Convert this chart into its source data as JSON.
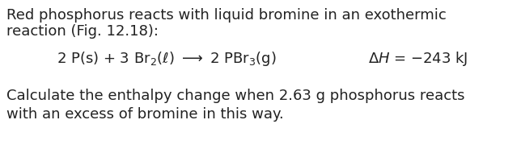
{
  "background_color": "#ffffff",
  "text_color": "#222222",
  "line1": "Red phosphorus reacts with liquid bromine in an exothermic",
  "line2": "reaction (Fig. 12.18):",
  "question1": "Calculate the enthalpy change when 2.63 g phosphorus reacts",
  "question2": "with an excess of bromine in this way.",
  "eq_left": "2 P(s) + 3 Br$_2$($\\ell$) $\\longrightarrow$ 2 PBr$_3$(g)",
  "eq_right": "$\\Delta H$ = −243 kJ",
  "body_fontsize": 13.0,
  "fig_width": 6.44,
  "fig_height": 1.85,
  "dpi": 100
}
